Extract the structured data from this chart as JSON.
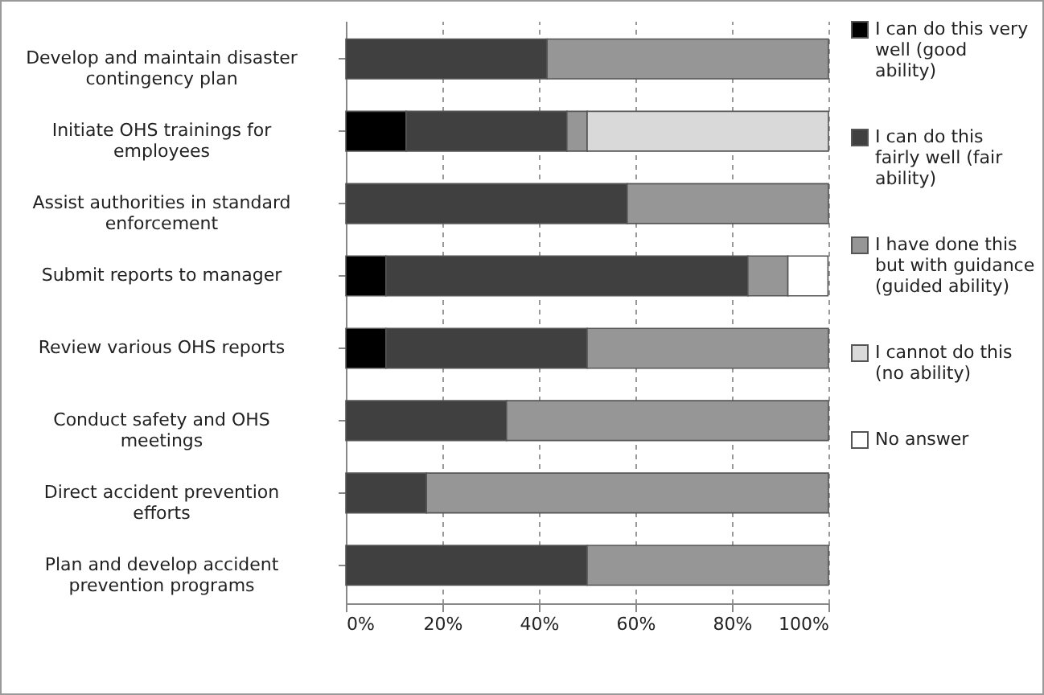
{
  "chart_data": {
    "type": "bar",
    "orientation": "horizontal",
    "stacked": true,
    "categories": [
      "Develop and maintain disaster contingency plan",
      "Initiate OHS trainings for employees",
      "Assist authorities in standard enforcement",
      "Submit reports to manager",
      "Review various OHS reports",
      "Conduct safety and OHS meetings",
      "Direct accident prevention efforts",
      "Plan and develop accident prevention programs"
    ],
    "series": [
      {
        "name": "I can do this very well (good ability)",
        "color": "#000000",
        "values": [
          null,
          12.5,
          null,
          8.3,
          8.3,
          null,
          null,
          null
        ]
      },
      {
        "name": "I can do this fairly well (fair ability)",
        "color": "#404040",
        "values": [
          41.7,
          33.3,
          58.3,
          75,
          41.7,
          33.3,
          16.7,
          50
        ]
      },
      {
        "name": "I have done this but with guidance (guided ability)",
        "color": "#969696",
        "values": [
          58.3,
          4.2,
          41.7,
          8.3,
          50,
          66.7,
          83.3,
          50
        ]
      },
      {
        "name": "I cannot do this (no ability)",
        "color": "#d9d9d9",
        "values": [
          null,
          50,
          null,
          null,
          null,
          null,
          null,
          null
        ]
      },
      {
        "name": "No answer",
        "color": "#ffffff",
        "values": [
          null,
          null,
          null,
          8.3,
          null,
          null,
          null,
          null
        ]
      }
    ],
    "xlim": [
      0,
      100
    ],
    "xticks": [
      {
        "value": 0,
        "label": "0%"
      },
      {
        "value": 20,
        "label": "20%"
      },
      {
        "value": 40,
        "label": "40%"
      },
      {
        "value": 60,
        "label": "60%"
      },
      {
        "value": 80,
        "label": "80%"
      },
      {
        "value": 100,
        "label": "100%"
      }
    ],
    "grid": "x",
    "legend": "right"
  }
}
